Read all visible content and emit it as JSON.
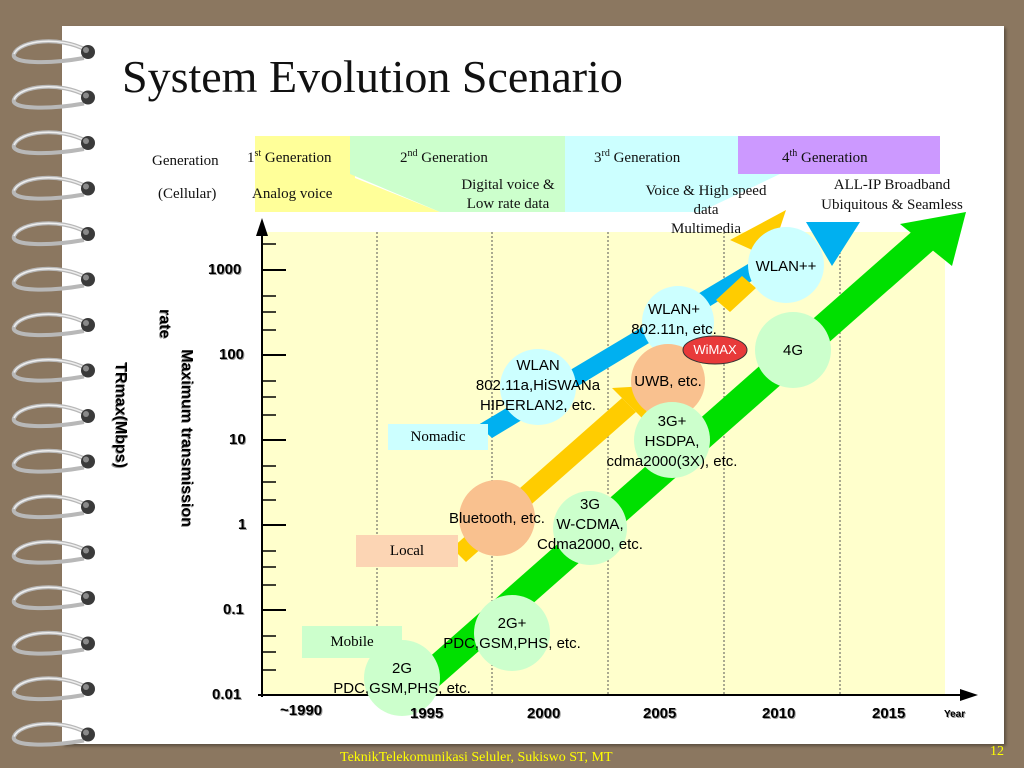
{
  "title": "System Evolution Scenario",
  "generation_header": {
    "label_line1": "Generation",
    "label_line2": "(Cellular)",
    "generations": [
      {
        "num": "1",
        "sup": "st",
        "name": "Generation",
        "detail": "Analog voice",
        "color": "#ffff99"
      },
      {
        "num": "2",
        "sup": "nd",
        "name": "Generation",
        "detail_line1": "Digital voice &",
        "detail_line2": "Low rate data",
        "color": "#ccffcc"
      },
      {
        "num": "3",
        "sup": "rd",
        "name": "Generation",
        "detail_line1": "Voice & High speed",
        "detail_line2": "data",
        "detail_line3": "Multimedia",
        "color": "#ccffff"
      },
      {
        "num": "4",
        "sup": "th",
        "name": "Generation",
        "detail_line1": "ALL-IP Broadband",
        "detail_line2": "Ubiquitous & Seamless",
        "color": "#cc99ff"
      }
    ]
  },
  "axis": {
    "y_label_line1": "Maximum transmission",
    "y_label_line2": "rate",
    "y_label_line3": "TRmax(Mbps)",
    "y_ticks": [
      "1000",
      "100",
      "10",
      "1",
      "0.1",
      "0.01"
    ],
    "x_ticks": [
      "~1990",
      "1995",
      "2000",
      "2005",
      "2010",
      "2015"
    ],
    "x_label": "Year"
  },
  "categories": {
    "nomadic": "Nomadic",
    "local": "Local",
    "mobile": "Mobile"
  },
  "technologies": {
    "wlan_pp": "WLAN++",
    "wlan_p_line1": "WLAN+",
    "wlan_p_line2": "802.11n, etc.",
    "wimax": "WiMAX",
    "fourg": "4G",
    "wlan_line1": "WLAN",
    "wlan_line2": "802.11a,HiSWANa",
    "wlan_line3": "HIPERLAN2, etc.",
    "uwb": "UWB, etc.",
    "threegp_line1": "3G+",
    "threegp_line2": "HSDPA,",
    "threegp_line3": "cdma2000(3X), etc.",
    "bluetooth": "Bluetooth, etc.",
    "threeg_line1": "3G",
    "threeg_line2": "W-CDMA,",
    "threeg_line3": "Cdma2000, etc.",
    "twogp_line1": "2G+",
    "twogp_line2": "PDC,GSM,PHS, etc.",
    "twog_line1": "2G",
    "twog_line2": "PDC,GSM,PHS, etc."
  },
  "footer": "TeknikTelekomunikasi Seluler, Sukiswo ST, MT",
  "page_number": "12"
}
